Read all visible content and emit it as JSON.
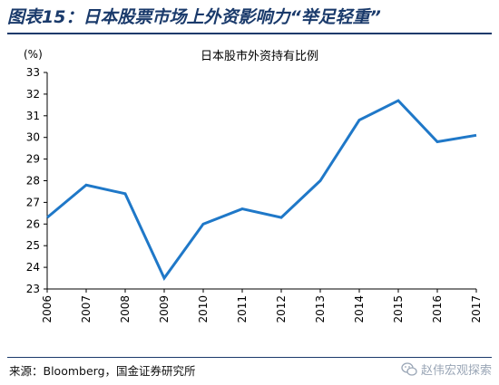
{
  "figure_title": "图表15：日本股票市场上外资影响力“举足轻重”",
  "source": "来源：Bloomberg，国金证券研究所",
  "watermark": "赵伟宏观探索",
  "colors": {
    "line": "#1f78c8",
    "title": "#1a3a6b"
  },
  "chart_data": {
    "type": "line",
    "title": "日本股市外资持有比例",
    "ylabel": "(%)",
    "xlabel": "",
    "x": [
      "2006",
      "2007",
      "2008",
      "2009",
      "2010",
      "2011",
      "2012",
      "2013",
      "2014",
      "2015",
      "2016",
      "2017"
    ],
    "series": [
      {
        "values": [
          26.3,
          27.8,
          27.4,
          23.5,
          26.0,
          26.7,
          26.3,
          28.0,
          30.8,
          31.7,
          29.8,
          30.1
        ]
      }
    ],
    "ylim": [
      23,
      33
    ],
    "yticks": [
      23,
      24,
      25,
      26,
      27,
      28,
      29,
      30,
      31,
      32,
      33
    ],
    "grid": false,
    "legend": "none"
  }
}
